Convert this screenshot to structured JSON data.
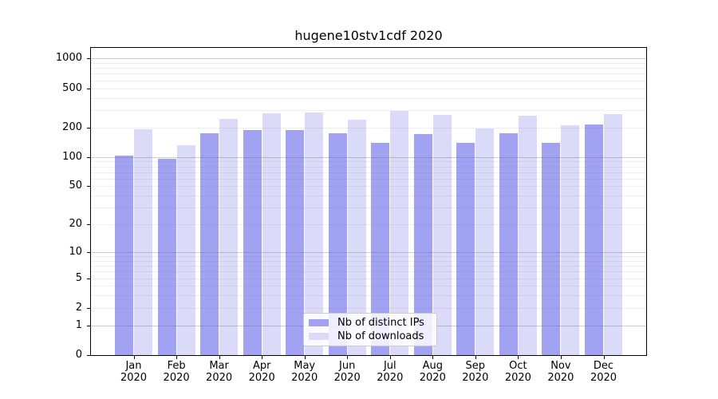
{
  "chart_data": {
    "type": "bar",
    "title": "hugene10stv1cdf 2020",
    "categories": [
      "Jan 2020",
      "Feb 2020",
      "Mar 2020",
      "Apr 2020",
      "May 2020",
      "Jun 2020",
      "Jul 2020",
      "Aug 2020",
      "Sep 2020",
      "Oct 2020",
      "Nov 2020",
      "Dec 2020"
    ],
    "series": [
      {
        "name": "Nb of distinct IPs",
        "color": "#a2a2f2",
        "values": [
          104,
          95,
          173,
          188,
          189,
          173,
          139,
          172,
          139,
          175,
          140,
          215
        ]
      },
      {
        "name": "Nb of downloads",
        "color": "#dbdbf9",
        "values": [
          192,
          132,
          245,
          280,
          286,
          239,
          292,
          268,
          195,
          263,
          209,
          271
        ]
      }
    ],
    "xlabel": "",
    "ylabel": "",
    "yscale": "log1p",
    "y_ticks": [
      0,
      1,
      2,
      5,
      10,
      20,
      50,
      100,
      200,
      500,
      1000
    ],
    "ylim": [
      0,
      1280
    ],
    "grid": "horizontal",
    "legend_position": "lower-center"
  },
  "colors": {
    "axis": "#000000",
    "major_grid": "#cdcdcd",
    "minor_grid": "#efefef",
    "legend_border": "#cccccc",
    "background": "#ffffff"
  }
}
